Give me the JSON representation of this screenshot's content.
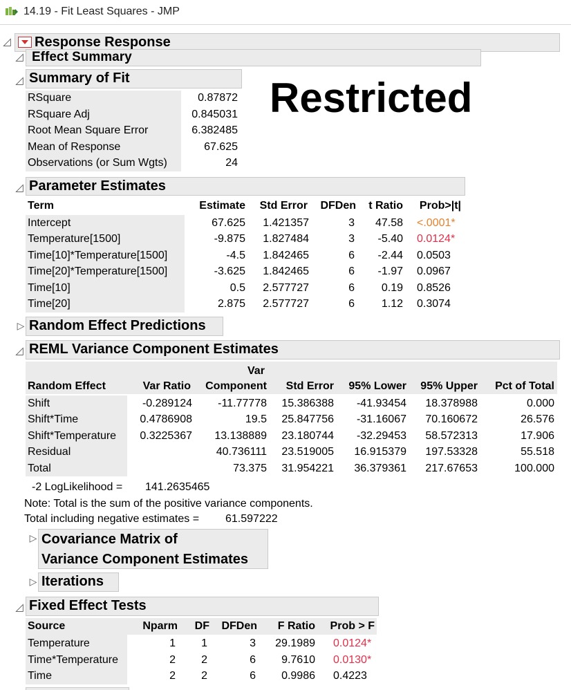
{
  "window": {
    "title": "14.19 - Fit Least Squares - JMP"
  },
  "report": {
    "title": "Response Response",
    "effect_summary": "Effect Summary",
    "overlay_label": "Restricted"
  },
  "summary_of_fit": {
    "title": "Summary of Fit",
    "rows": [
      {
        "label": "RSquare",
        "value": "0.87872"
      },
      {
        "label": "RSquare Adj",
        "value": "0.845031"
      },
      {
        "label": "Root Mean Square Error",
        "value": "6.382485"
      },
      {
        "label": "Mean of Response",
        "value": "67.625"
      },
      {
        "label": "Observations (or Sum Wgts)",
        "value": "24"
      }
    ]
  },
  "parameter_estimates": {
    "title": "Parameter Estimates",
    "columns": [
      "Term",
      "Estimate",
      "Std Error",
      "DFDen",
      "t Ratio",
      "Prob>|t|"
    ],
    "rows": [
      [
        "Intercept",
        "67.625",
        "1.421357",
        "3",
        "47.58",
        "<.0001*"
      ],
      [
        "Temperature[1500]",
        "-9.875",
        "1.827484",
        "3",
        "-5.40",
        "0.0124*"
      ],
      [
        "Time[10]*Temperature[1500]",
        "-4.5",
        "1.842465",
        "6",
        "-2.44",
        "0.0503"
      ],
      [
        "Time[20]*Temperature[1500]",
        "-3.625",
        "1.842465",
        "6",
        "-1.97",
        "0.0967"
      ],
      [
        "Time[10]",
        "0.5",
        "2.577727",
        "6",
        "0.19",
        "0.8526"
      ],
      [
        "Time[20]",
        "2.875",
        "2.577727",
        "6",
        "1.12",
        "0.3074"
      ]
    ],
    "highlight": [
      "orange",
      "red",
      "",
      "",
      "",
      ""
    ]
  },
  "random_effect_predictions": {
    "title": "Random Effect Predictions"
  },
  "reml": {
    "title": "REML Variance Component Estimates",
    "columns": [
      "Random Effect",
      "Var Ratio",
      "Var Component",
      "Std Error",
      "95% Lower",
      "95% Upper",
      "Pct of Total"
    ],
    "col_var_top": "Var",
    "col_var_bottom": "Component",
    "rows": [
      [
        "Shift",
        "-0.289124",
        "-11.77778",
        "15.386388",
        "-41.93454",
        "18.378988",
        "0.000"
      ],
      [
        "Shift*Time",
        "0.4786908",
        "19.5",
        "25.847756",
        "-31.16067",
        "70.160672",
        "26.576"
      ],
      [
        "Shift*Temperature",
        "0.3225367",
        "13.138889",
        "23.180744",
        "-32.29453",
        "58.572313",
        "17.906"
      ],
      [
        "Residual",
        "",
        "40.736111",
        "23.519005",
        "16.915379",
        "197.53328",
        "55.518"
      ],
      [
        "Total",
        "",
        "73.375",
        "31.954221",
        "36.379361",
        "217.67653",
        "100.000"
      ]
    ],
    "loglik_label": "-2 LogLikelihood =",
    "loglik_value": "141.2635465",
    "note": "Note: Total is the sum of the positive variance components.",
    "neg_label": "Total including negative estimates =",
    "neg_value": "61.597222"
  },
  "covariance_matrix": {
    "title_line1": "Covariance Matrix of",
    "title_line2": "Variance Component Estimates"
  },
  "iterations": {
    "title": "Iterations"
  },
  "fixed_effect_tests": {
    "title": "Fixed Effect Tests",
    "columns": [
      "Source",
      "Nparm",
      "DF",
      "DFDen",
      "F Ratio",
      "Prob > F"
    ],
    "rows": [
      [
        "Temperature",
        "1",
        "1",
        "3",
        "29.1989",
        "0.0124*"
      ],
      [
        "Time*Temperature",
        "2",
        "2",
        "6",
        "9.7610",
        "0.0130*"
      ],
      [
        "Time",
        "2",
        "2",
        "6",
        "0.9986",
        "0.4223"
      ]
    ],
    "highlight": [
      "red",
      "red",
      ""
    ]
  },
  "colors": {
    "orange_p": "#e8822c",
    "red_p": "#e0304a",
    "header_bg": "#ebebeb"
  },
  "icons": {
    "disclosure_open": "disclosure-open-icon",
    "disclosure_closed": "disclosure-closed-icon",
    "menu": "red-menu-icon"
  }
}
